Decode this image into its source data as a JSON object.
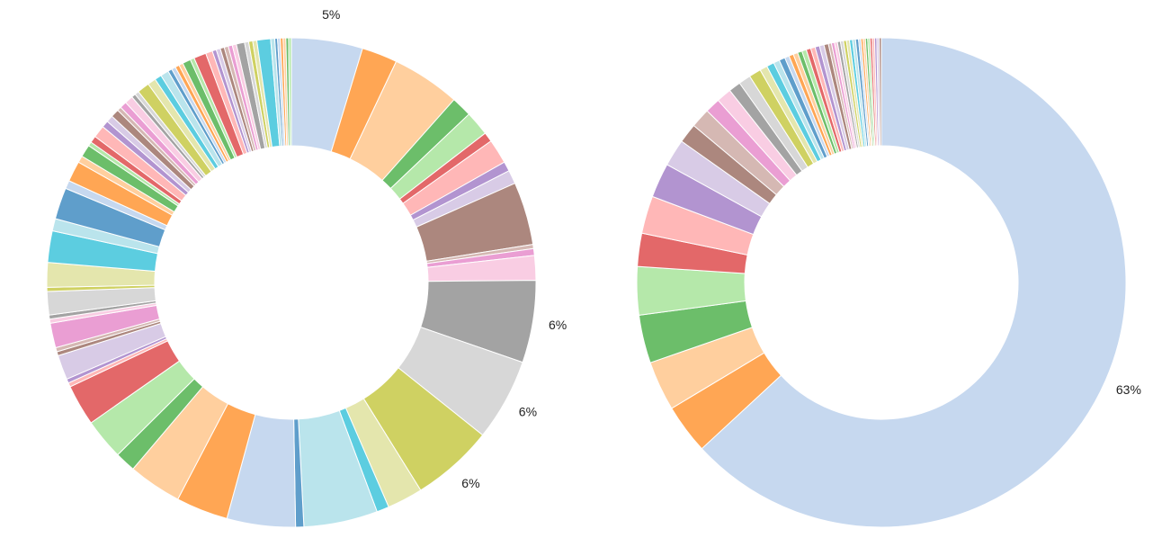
{
  "palette": [
    "#c6d8ef",
    "#ffa654",
    "#ffcf9e",
    "#6cbe6a",
    "#b5e8aa",
    "#e36869",
    "#ffb7b7",
    "#b294d0",
    "#d8cbe6",
    "#ac877e",
    "#d5b8b3",
    "#ea9ed3",
    "#f9cde3",
    "#a3a3a3",
    "#d7d7d7",
    "#cfd162",
    "#e4e6ad",
    "#5ccde0",
    "#bae4ec",
    "#5f9ecb"
  ],
  "chart_data": [
    {
      "type": "pie",
      "style": "donut",
      "start": "top",
      "direction": "clockwise",
      "labels_shown": [
        "5%",
        "6%",
        "6%",
        "6%"
      ],
      "values": [
        5.2,
        2.6,
        5.0,
        1.5,
        1.8,
        0.7,
        1.8,
        0.7,
        1.0,
        4.6,
        0.3,
        0.5,
        1.8,
        6.0,
        6.0,
        6.0,
        2.6,
        0.9,
        5.4,
        0.6,
        5.0,
        3.8,
        3.9,
        1.5,
        3.0,
        3.0,
        0.3,
        0.3,
        1.8,
        0.3,
        0.3,
        1.8,
        0.3,
        0.3,
        1.7,
        0.3,
        1.8,
        2.3,
        0.9,
        2.3,
        0.6,
        1.5,
        0.5,
        0.9,
        0.3,
        0.5,
        0.9,
        0.5,
        0.5,
        0.6,
        0.3,
        0.5,
        0.6,
        0.3,
        0.3,
        0.9,
        0.6,
        0.5,
        0.6,
        0.3,
        0.3,
        0.3,
        0.3,
        0.6,
        0.3,
        0.9,
        0.5,
        0.3,
        0.3,
        0.3,
        0.3,
        0.3,
        0.3,
        0.6,
        0.3,
        0.3,
        0.3,
        1.0,
        0.3,
        0.2,
        0.2,
        0.2,
        0.2,
        0.2,
        0.2
      ]
    },
    {
      "type": "pie",
      "style": "donut",
      "start": "top",
      "direction": "clockwise",
      "labels_shown": [
        "63%"
      ],
      "values": [
        63.5,
        3.3,
        3.3,
        3.2,
        3.2,
        2.2,
        2.5,
        2.3,
        1.8,
        1.3,
        1.3,
        1.0,
        1.0,
        0.8,
        0.8,
        0.8,
        0.5,
        0.5,
        0.4,
        0.4,
        0.3,
        0.3,
        0.3,
        0.3,
        0.3,
        0.3,
        0.3,
        0.3,
        0.3,
        0.3,
        0.2,
        0.2,
        0.2,
        0.2,
        0.2,
        0.2,
        0.2,
        0.2,
        0.2,
        0.2,
        0.15,
        0.15,
        0.15,
        0.15,
        0.15,
        0.15,
        0.15,
        0.15,
        0.15,
        0.15
      ]
    }
  ]
}
